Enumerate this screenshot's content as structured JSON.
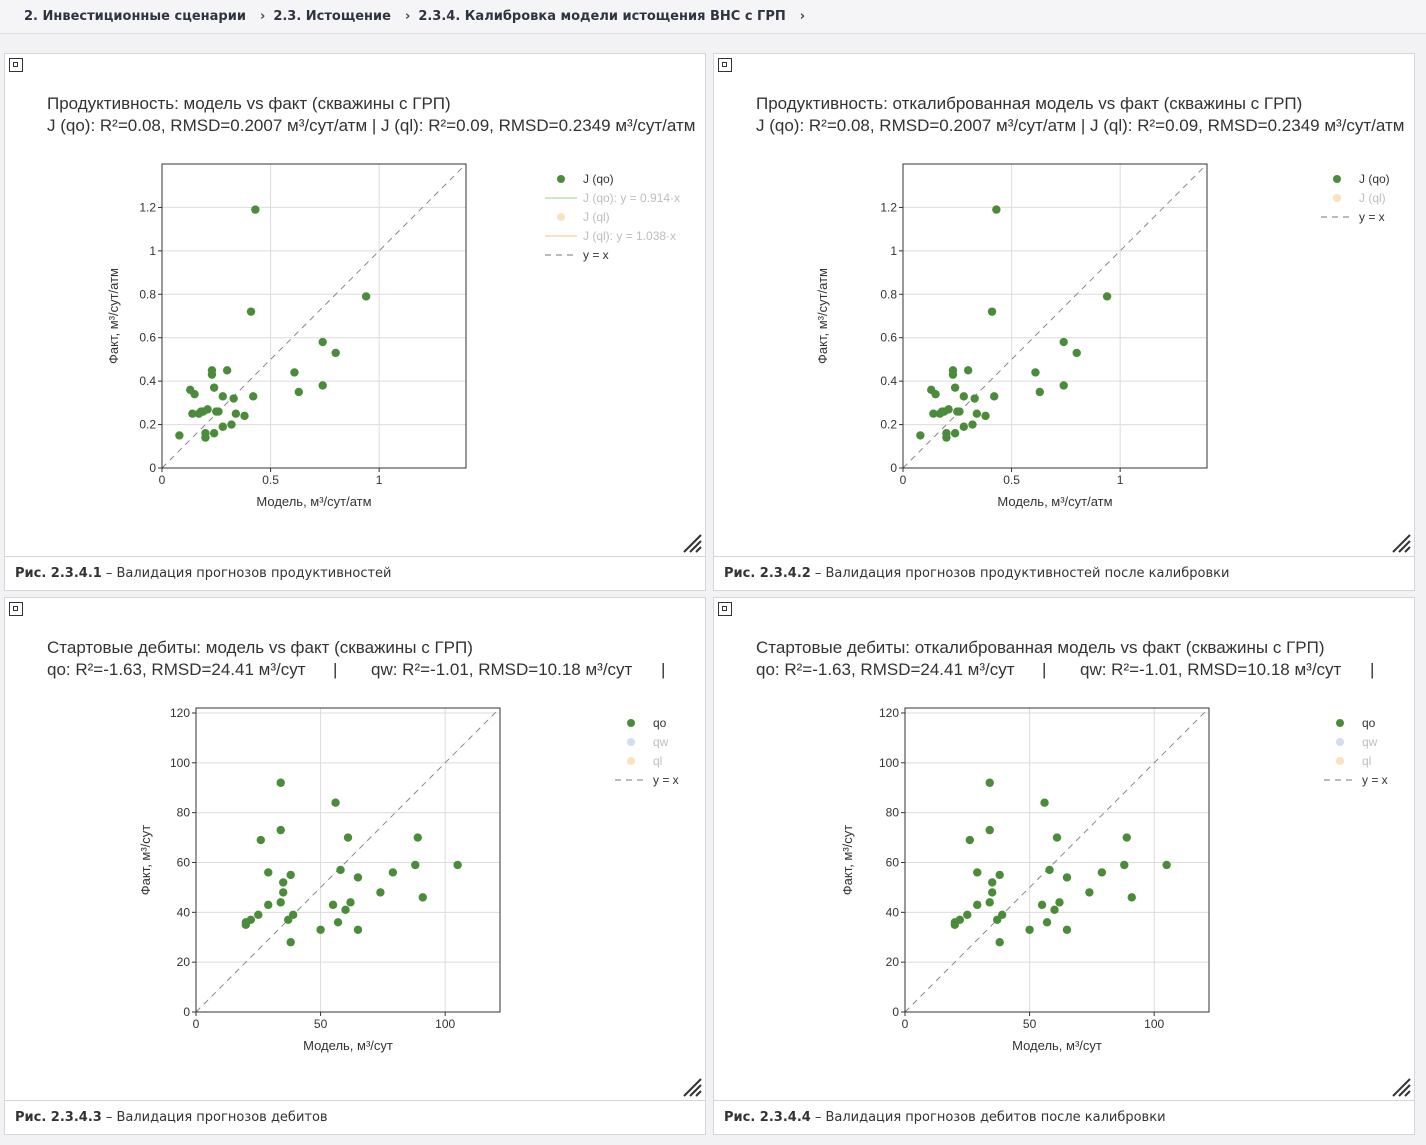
{
  "breadcrumb": [
    "2. Инвестиционные сценарии",
    "2.3. Истощение",
    "2.3.4. Калибровка модели истощения ВНС с ГРП"
  ],
  "panels": [
    {
      "caption_num": "Рис. 2.3.4.1",
      "caption_text": "– Валидация прогнозов продуктивностей",
      "chart_data": {
        "type": "scatter",
        "title": "Продуктивность: модель vs факт (скважины с ГРП)",
        "subtitle": "J (qo): R²=0.08, RMSD=0.2007 м³/сут/атм | J (ql): R²=0.09, RMSD=0.2349 м³/сут/атм",
        "xlabel": "Модель, м³/сут/атм",
        "ylabel": "Факт, м³/сут/атм",
        "xlim": [
          0,
          1.4
        ],
        "ylim": [
          0,
          1.4
        ],
        "xticks": [
          0,
          0.5,
          1
        ],
        "yticks": [
          0,
          0.2,
          0.4,
          0.6,
          0.8,
          1,
          1.2
        ],
        "xtick_labels": [
          "0",
          "0.5",
          "1"
        ],
        "ytick_labels": [
          "0",
          "0.2",
          "0.4",
          "0.6",
          "0.8",
          "1",
          "1.2"
        ],
        "grid": true,
        "legend": [
          {
            "label": "J (qo)",
            "kind": "marker",
            "color": "#4a8c3a",
            "faded": false
          },
          {
            "label": "J (qo): y = 0.914·x",
            "kind": "line",
            "color": "#a8d49a",
            "faded": true
          },
          {
            "label": "J (ql)",
            "kind": "marker",
            "color": "#f7c98e",
            "faded": true
          },
          {
            "label": "J (ql): y = 1.038·x",
            "kind": "line",
            "color": "#f7c98e",
            "faded": true
          },
          {
            "label": "y = x",
            "kind": "dash",
            "color": "#777777",
            "faded": false
          }
        ],
        "series": [
          {
            "name": "J (qo)",
            "color": "#4a8c3a",
            "points": [
              [
                0.43,
                1.19
              ],
              [
                0.94,
                0.79
              ],
              [
                0.41,
                0.72
              ],
              [
                0.74,
                0.58
              ],
              [
                0.8,
                0.53
              ],
              [
                0.61,
                0.44
              ],
              [
                0.74,
                0.38
              ],
              [
                0.63,
                0.35
              ],
              [
                0.23,
                0.45
              ],
              [
                0.3,
                0.45
              ],
              [
                0.23,
                0.43
              ],
              [
                0.13,
                0.36
              ],
              [
                0.24,
                0.37
              ],
              [
                0.15,
                0.34
              ],
              [
                0.28,
                0.33
              ],
              [
                0.33,
                0.32
              ],
              [
                0.42,
                0.33
              ],
              [
                0.21,
                0.27
              ],
              [
                0.18,
                0.26
              ],
              [
                0.17,
                0.25
              ],
              [
                0.19,
                0.26
              ],
              [
                0.25,
                0.26
              ],
              [
                0.26,
                0.26
              ],
              [
                0.14,
                0.25
              ],
              [
                0.34,
                0.25
              ],
              [
                0.38,
                0.24
              ],
              [
                0.32,
                0.2
              ],
              [
                0.28,
                0.19
              ],
              [
                0.24,
                0.16
              ],
              [
                0.2,
                0.16
              ],
              [
                0.2,
                0.14
              ],
              [
                0.08,
                0.15
              ]
            ]
          }
        ]
      }
    },
    {
      "caption_num": "Рис. 2.3.4.2",
      "caption_text": "– Валидация прогнозов продуктивностей после калибровки",
      "chart_data": {
        "type": "scatter",
        "title": "Продуктивность: откалиброванная модель vs факт (скважины с ГРП)",
        "subtitle": "J (qo): R²=0.08, RMSD=0.2007 м³/сут/атм | J (ql): R²=0.09, RMSD=0.2349 м³/сут/атм",
        "xlabel": "Модель, м³/сут/атм",
        "ylabel": "Факт, м³/сут/атм",
        "xlim": [
          0,
          1.4
        ],
        "ylim": [
          0,
          1.4
        ],
        "xticks": [
          0,
          0.5,
          1
        ],
        "yticks": [
          0,
          0.2,
          0.4,
          0.6,
          0.8,
          1,
          1.2
        ],
        "xtick_labels": [
          "0",
          "0.5",
          "1"
        ],
        "ytick_labels": [
          "0",
          "0.2",
          "0.4",
          "0.6",
          "0.8",
          "1",
          "1.2"
        ],
        "grid": true,
        "legend": [
          {
            "label": "J (qo)",
            "kind": "marker",
            "color": "#4a8c3a",
            "faded": false
          },
          {
            "label": "J (ql)",
            "kind": "marker",
            "color": "#f7c98e",
            "faded": true
          },
          {
            "label": "y = x",
            "kind": "dash",
            "color": "#777777",
            "faded": false
          }
        ],
        "series": [
          {
            "name": "J (qo)",
            "color": "#4a8c3a",
            "points": [
              [
                0.43,
                1.19
              ],
              [
                0.94,
                0.79
              ],
              [
                0.41,
                0.72
              ],
              [
                0.74,
                0.58
              ],
              [
                0.8,
                0.53
              ],
              [
                0.61,
                0.44
              ],
              [
                0.74,
                0.38
              ],
              [
                0.63,
                0.35
              ],
              [
                0.23,
                0.45
              ],
              [
                0.3,
                0.45
              ],
              [
                0.23,
                0.43
              ],
              [
                0.13,
                0.36
              ],
              [
                0.24,
                0.37
              ],
              [
                0.15,
                0.34
              ],
              [
                0.28,
                0.33
              ],
              [
                0.33,
                0.32
              ],
              [
                0.42,
                0.33
              ],
              [
                0.21,
                0.27
              ],
              [
                0.18,
                0.26
              ],
              [
                0.17,
                0.25
              ],
              [
                0.19,
                0.26
              ],
              [
                0.25,
                0.26
              ],
              [
                0.26,
                0.26
              ],
              [
                0.14,
                0.25
              ],
              [
                0.34,
                0.25
              ],
              [
                0.38,
                0.24
              ],
              [
                0.32,
                0.2
              ],
              [
                0.28,
                0.19
              ],
              [
                0.24,
                0.16
              ],
              [
                0.2,
                0.16
              ],
              [
                0.2,
                0.14
              ],
              [
                0.08,
                0.15
              ]
            ]
          }
        ]
      }
    },
    {
      "caption_num": "Рис. 2.3.4.3",
      "caption_text": "– Валидация прогнозов дебитов",
      "chart_data": {
        "type": "scatter",
        "title": "Стартовые дебиты: модель vs факт (скважины с ГРП)",
        "subtitle_parts": [
          "qo: R²=-1.63, RMSD=24.41 м³/сут",
          "|",
          "qw: R²=-1.01, RMSD=10.18 м³/сут",
          "|"
        ],
        "xlabel": "Модель, м³/сут",
        "ylabel": "Факт, м³/сут",
        "xlim": [
          0,
          122
        ],
        "ylim": [
          0,
          122
        ],
        "xticks": [
          0,
          50,
          100
        ],
        "yticks": [
          0,
          20,
          40,
          60,
          80,
          100,
          120
        ],
        "xtick_labels": [
          "0",
          "50",
          "100"
        ],
        "ytick_labels": [
          "0",
          "20",
          "40",
          "60",
          "80",
          "100",
          "120"
        ],
        "grid": true,
        "legend": [
          {
            "label": "qo",
            "kind": "marker",
            "color": "#4a8c3a",
            "faded": false
          },
          {
            "label": "qw",
            "kind": "marker",
            "color": "#b4c0e8",
            "faded": true
          },
          {
            "label": "ql",
            "kind": "marker",
            "color": "#f7c98e",
            "faded": true
          },
          {
            "label": "y = x",
            "kind": "dash",
            "color": "#777777",
            "faded": false
          }
        ],
        "series": [
          {
            "name": "qo",
            "color": "#4a8c3a",
            "points": [
              [
                34,
                92
              ],
              [
                56,
                84
              ],
              [
                34,
                73
              ],
              [
                26,
                69
              ],
              [
                61,
                70
              ],
              [
                89,
                70
              ],
              [
                29,
                56
              ],
              [
                58,
                57
              ],
              [
                79,
                56
              ],
              [
                88,
                59
              ],
              [
                105,
                59
              ],
              [
                38,
                55
              ],
              [
                65,
                54
              ],
              [
                35,
                52
              ],
              [
                35,
                48
              ],
              [
                74,
                48
              ],
              [
                91,
                46
              ],
              [
                29,
                43
              ],
              [
                34,
                44
              ],
              [
                55,
                43
              ],
              [
                62,
                44
              ],
              [
                60,
                41
              ],
              [
                39,
                39
              ],
              [
                25,
                39
              ],
              [
                37,
                37
              ],
              [
                57,
                36
              ],
              [
                22,
                37
              ],
              [
                20,
                36
              ],
              [
                20,
                35
              ],
              [
                50,
                33
              ],
              [
                65,
                33
              ],
              [
                38,
                28
              ]
            ]
          }
        ]
      }
    },
    {
      "caption_num": "Рис. 2.3.4.4",
      "caption_text": "– Валидация прогнозов дебитов после калибровки",
      "chart_data": {
        "type": "scatter",
        "title": "Стартовые дебиты: откалиброванная модель vs факт (скважины с ГРП)",
        "subtitle_parts": [
          "qo: R²=-1.63, RMSD=24.41 м³/сут",
          "|",
          "qw: R²=-1.01, RMSD=10.18 м³/сут",
          "|"
        ],
        "xlabel": "Модель, м³/сут",
        "ylabel": "Факт, м³/сут",
        "xlim": [
          0,
          122
        ],
        "ylim": [
          0,
          122
        ],
        "xticks": [
          0,
          50,
          100
        ],
        "yticks": [
          0,
          20,
          40,
          60,
          80,
          100,
          120
        ],
        "xtick_labels": [
          "0",
          "50",
          "100"
        ],
        "ytick_labels": [
          "0",
          "20",
          "40",
          "60",
          "80",
          "100",
          "120"
        ],
        "grid": true,
        "legend": [
          {
            "label": "qo",
            "kind": "marker",
            "color": "#4a8c3a",
            "faded": false
          },
          {
            "label": "qw",
            "kind": "marker",
            "color": "#b4c0e8",
            "faded": true
          },
          {
            "label": "ql",
            "kind": "marker",
            "color": "#f7c98e",
            "faded": true
          },
          {
            "label": "y = x",
            "kind": "dash",
            "color": "#777777",
            "faded": false
          }
        ],
        "series": [
          {
            "name": "qo",
            "color": "#4a8c3a",
            "points": [
              [
                34,
                92
              ],
              [
                56,
                84
              ],
              [
                34,
                73
              ],
              [
                26,
                69
              ],
              [
                61,
                70
              ],
              [
                89,
                70
              ],
              [
                29,
                56
              ],
              [
                58,
                57
              ],
              [
                79,
                56
              ],
              [
                88,
                59
              ],
              [
                105,
                59
              ],
              [
                38,
                55
              ],
              [
                65,
                54
              ],
              [
                35,
                52
              ],
              [
                35,
                48
              ],
              [
                74,
                48
              ],
              [
                91,
                46
              ],
              [
                29,
                43
              ],
              [
                34,
                44
              ],
              [
                55,
                43
              ],
              [
                62,
                44
              ],
              [
                60,
                41
              ],
              [
                39,
                39
              ],
              [
                25,
                39
              ],
              [
                37,
                37
              ],
              [
                57,
                36
              ],
              [
                22,
                37
              ],
              [
                20,
                36
              ],
              [
                20,
                35
              ],
              [
                50,
                33
              ],
              [
                65,
                33
              ],
              [
                38,
                28
              ]
            ]
          }
        ]
      }
    }
  ]
}
